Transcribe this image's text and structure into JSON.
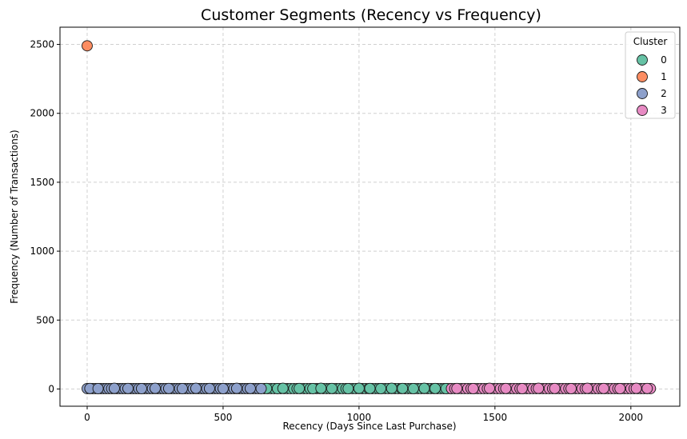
{
  "chart_data": {
    "type": "scatter",
    "title": "Customer Segments (Recency vs Frequency)",
    "xlabel": "Recency (Days Since Last Purchase)",
    "ylabel": "Frequency (Number of Transactions)",
    "xlim": [
      -100,
      2180
    ],
    "ylim": [
      -125,
      2625
    ],
    "xticks": [
      0,
      500,
      1000,
      1500,
      2000
    ],
    "yticks": [
      0,
      500,
      1000,
      1500,
      2000,
      2500
    ],
    "grid": true,
    "legend": {
      "title": "Cluster",
      "placement": "top-right"
    },
    "series": [
      {
        "name": "0",
        "color": "#66c2a5",
        "x_start": 640,
        "x_end": 1340,
        "x_step": 12,
        "points": [
          [
            660,
            4
          ],
          [
            700,
            3
          ],
          [
            720,
            5
          ],
          [
            780,
            4
          ],
          [
            830,
            3
          ],
          [
            860,
            5
          ],
          [
            900,
            4
          ],
          [
            960,
            3
          ],
          [
            1000,
            5
          ],
          [
            1040,
            4
          ],
          [
            1080,
            3
          ],
          [
            1120,
            5
          ],
          [
            1160,
            4
          ],
          [
            1200,
            3
          ],
          [
            1240,
            5
          ],
          [
            1280,
            4
          ],
          [
            1320,
            3
          ]
        ],
        "y": 3
      },
      {
        "name": "1",
        "color": "#fc8d62",
        "points": [
          [
            0,
            2490
          ]
        ]
      },
      {
        "name": "2",
        "color": "#8da0cb",
        "x_start": 0,
        "x_end": 640,
        "x_step": 10,
        "points": [
          [
            10,
            4
          ],
          [
            40,
            3
          ],
          [
            100,
            5
          ],
          [
            150,
            4
          ],
          [
            200,
            3
          ],
          [
            250,
            5
          ],
          [
            300,
            4
          ],
          [
            350,
            3
          ],
          [
            400,
            5
          ],
          [
            450,
            4
          ],
          [
            500,
            3
          ],
          [
            550,
            5
          ],
          [
            600,
            4
          ]
        ],
        "y": 3
      },
      {
        "name": "3",
        "color": "#e78ac3",
        "x_start": 1340,
        "x_end": 2080,
        "x_step": 12,
        "points": [
          [
            1360,
            4
          ],
          [
            1420,
            3
          ],
          [
            1480,
            5
          ],
          [
            1540,
            4
          ],
          [
            1600,
            3
          ],
          [
            1660,
            5
          ],
          [
            1720,
            4
          ],
          [
            1780,
            3
          ],
          [
            1840,
            5
          ],
          [
            1900,
            4
          ],
          [
            1960,
            3
          ],
          [
            2020,
            5
          ],
          [
            2060,
            4
          ]
        ],
        "y": 3
      }
    ]
  }
}
